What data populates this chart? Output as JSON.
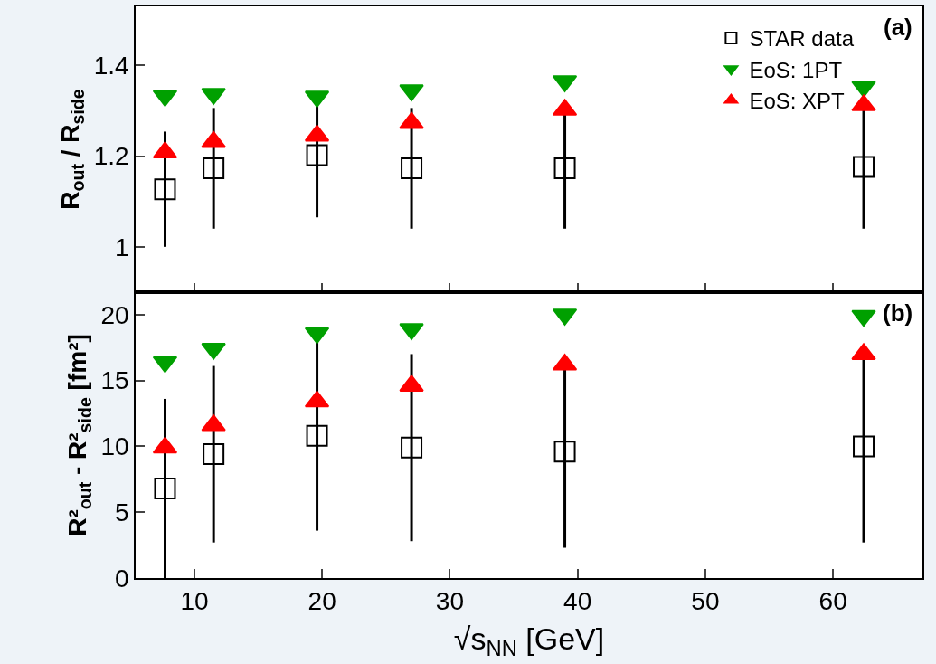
{
  "chart_data": [
    {
      "type": "scatter",
      "ylabel": "R$_{out}$ / R$_{side}$",
      "x": [
        7.7,
        11.5,
        19.6,
        27,
        39,
        62.4
      ],
      "xlim": [
        5.4,
        67
      ],
      "xticks": [
        10,
        20,
        30,
        40,
        50,
        60
      ],
      "ylim": [
        0.9,
        1.53
      ],
      "yticks": [
        1,
        1.2,
        1.4
      ],
      "tick_labels": "y",
      "legend": "right",
      "grid": false,
      "annotations": [
        "(a)"
      ],
      "series": [
        {
          "name": "STAR data",
          "color": "#000000",
          "marker": "square",
          "values": [
            1.127,
            1.173,
            1.202,
            1.173,
            1.173,
            1.176
          ],
          "errors": [
            0.127,
            0.133,
            0.137,
            0.133,
            0.133,
            0.136
          ]
        },
        {
          "name": "EoS: 1PT",
          "color": "#00a000",
          "marker": "triangle-down",
          "values": [
            1.333,
            1.337,
            1.331,
            1.345,
            1.365,
            1.353
          ]
        },
        {
          "name": "EoS: XPT",
          "color": "#ff0000",
          "marker": "triangle",
          "values": [
            1.208,
            1.231,
            1.245,
            1.273,
            1.302,
            1.312
          ]
        }
      ]
    },
    {
      "type": "scatter",
      "xlabel": "√s$_{NN}$ [GeV]",
      "ylabel": "R²$_{out}$ - R²$_{side}$ [fm²]",
      "x": [
        7.7,
        11.5,
        19.6,
        27,
        39,
        62.4
      ],
      "xlim": [
        5.4,
        67
      ],
      "xticks": [
        10,
        20,
        30,
        40,
        50,
        60
      ],
      "ylim": [
        0,
        21.7
      ],
      "yticks": [
        0,
        5,
        10,
        15,
        20
      ],
      "grid": false,
      "annotations": [
        "(b)"
      ],
      "series": [
        {
          "color": "#000000",
          "marker": "square",
          "values": [
            6.8,
            9.4,
            10.8,
            9.9,
            9.6,
            10.0
          ],
          "errors": [
            6.8,
            6.7,
            7.2,
            7.1,
            7.3,
            7.3
          ]
        },
        {
          "color": "#00a000",
          "marker": "triangle-down",
          "values": [
            16.4,
            17.4,
            18.6,
            18.9,
            20.0,
            19.9
          ]
        },
        {
          "color": "#ff0000",
          "marker": "triangle",
          "values": [
            9.9,
            11.6,
            13.4,
            14.6,
            16.2,
            17.0
          ]
        }
      ]
    }
  ]
}
